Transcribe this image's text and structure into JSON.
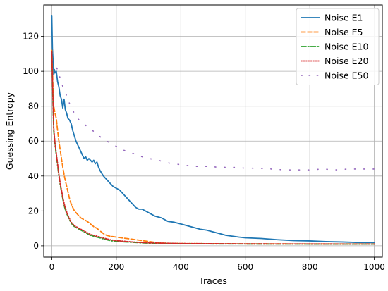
{
  "chart_data": {
    "type": "line",
    "xlabel": "Traces",
    "ylabel": "Guessing Entropy",
    "xlim": [
      -25,
      1025
    ],
    "ylim": [
      -6.5,
      138
    ],
    "x_ticks": [
      0,
      200,
      400,
      600,
      800,
      1000
    ],
    "y_ticks": [
      0,
      20,
      40,
      60,
      80,
      100,
      120
    ],
    "grid": true,
    "legend_position": "top-right",
    "series": [
      {
        "name": "Noise E1",
        "color": "#1f77b4",
        "style": "solid",
        "points": [
          [
            0,
            132
          ],
          [
            2,
            113
          ],
          [
            4,
            106
          ],
          [
            6,
            98
          ],
          [
            8,
            101
          ],
          [
            10,
            99
          ],
          [
            14,
            100
          ],
          [
            18,
            94
          ],
          [
            22,
            91
          ],
          [
            26,
            86
          ],
          [
            30,
            84
          ],
          [
            34,
            79
          ],
          [
            38,
            84
          ],
          [
            42,
            78
          ],
          [
            46,
            76
          ],
          [
            50,
            73
          ],
          [
            55,
            72
          ],
          [
            60,
            70
          ],
          [
            65,
            66
          ],
          [
            70,
            63
          ],
          [
            75,
            60
          ],
          [
            80,
            58
          ],
          [
            85,
            56
          ],
          [
            90,
            54
          ],
          [
            95,
            52
          ],
          [
            100,
            50
          ],
          [
            105,
            51
          ],
          [
            110,
            49
          ],
          [
            115,
            50
          ],
          [
            120,
            49
          ],
          [
            125,
            48
          ],
          [
            130,
            49
          ],
          [
            135,
            47
          ],
          [
            140,
            48
          ],
          [
            145,
            45
          ],
          [
            150,
            43
          ],
          [
            160,
            40
          ],
          [
            170,
            38
          ],
          [
            180,
            36
          ],
          [
            190,
            34
          ],
          [
            200,
            33
          ],
          [
            210,
            32
          ],
          [
            220,
            30
          ],
          [
            230,
            28
          ],
          [
            240,
            26
          ],
          [
            250,
            24
          ],
          [
            260,
            22
          ],
          [
            270,
            21
          ],
          [
            280,
            21
          ],
          [
            290,
            20
          ],
          [
            300,
            19
          ],
          [
            320,
            17
          ],
          [
            340,
            16
          ],
          [
            360,
            14
          ],
          [
            380,
            13.5
          ],
          [
            400,
            12.5
          ],
          [
            420,
            11.5
          ],
          [
            440,
            10.5
          ],
          [
            460,
            9.5
          ],
          [
            480,
            9
          ],
          [
            500,
            8
          ],
          [
            520,
            7
          ],
          [
            540,
            6
          ],
          [
            560,
            5.5
          ],
          [
            580,
            5
          ],
          [
            600,
            4.6
          ],
          [
            650,
            4.2
          ],
          [
            700,
            3.5
          ],
          [
            750,
            3
          ],
          [
            800,
            2.8
          ],
          [
            850,
            2.4
          ],
          [
            900,
            2.2
          ],
          [
            950,
            1.9
          ],
          [
            1000,
            1.9
          ]
        ]
      },
      {
        "name": "Noise E5",
        "color": "#ff7f0e",
        "style": "dashed",
        "points": [
          [
            0,
            112
          ],
          [
            2,
            101
          ],
          [
            4,
            88
          ],
          [
            6,
            80
          ],
          [
            8,
            78
          ],
          [
            10,
            76
          ],
          [
            14,
            73
          ],
          [
            18,
            66
          ],
          [
            22,
            60
          ],
          [
            26,
            55
          ],
          [
            30,
            50
          ],
          [
            35,
            44
          ],
          [
            40,
            39
          ],
          [
            45,
            35
          ],
          [
            50,
            31
          ],
          [
            55,
            27
          ],
          [
            60,
            24
          ],
          [
            65,
            22
          ],
          [
            70,
            20
          ],
          [
            80,
            18
          ],
          [
            90,
            16
          ],
          [
            100,
            15
          ],
          [
            110,
            14
          ],
          [
            120,
            12.5
          ],
          [
            130,
            11
          ],
          [
            140,
            10
          ],
          [
            150,
            8.5
          ],
          [
            160,
            7
          ],
          [
            170,
            6
          ],
          [
            180,
            5.5
          ],
          [
            200,
            5
          ],
          [
            220,
            4.5
          ],
          [
            240,
            4
          ],
          [
            260,
            3.5
          ],
          [
            280,
            3
          ],
          [
            300,
            2.5
          ],
          [
            320,
            2
          ],
          [
            340,
            1.6
          ],
          [
            360,
            1.4
          ],
          [
            400,
            1.3
          ],
          [
            500,
            1.2
          ],
          [
            600,
            1.1
          ],
          [
            700,
            1.1
          ],
          [
            800,
            1.05
          ],
          [
            900,
            1.05
          ],
          [
            1000,
            1.05
          ]
        ]
      },
      {
        "name": "Noise E10",
        "color": "#2ca02c",
        "style": "dashdot",
        "points": [
          [
            0,
            110
          ],
          [
            2,
            95
          ],
          [
            4,
            80
          ],
          [
            6,
            66
          ],
          [
            8,
            62
          ],
          [
            10,
            58
          ],
          [
            14,
            52
          ],
          [
            18,
            46
          ],
          [
            22,
            40
          ],
          [
            26,
            35
          ],
          [
            30,
            31
          ],
          [
            35,
            26
          ],
          [
            40,
            22
          ],
          [
            45,
            19
          ],
          [
            50,
            17
          ],
          [
            55,
            15
          ],
          [
            60,
            13
          ],
          [
            70,
            11
          ],
          [
            80,
            10
          ],
          [
            90,
            9
          ],
          [
            100,
            8
          ],
          [
            110,
            7
          ],
          [
            120,
            6
          ],
          [
            130,
            5.5
          ],
          [
            140,
            5
          ],
          [
            160,
            4
          ],
          [
            180,
            3
          ],
          [
            200,
            2.5
          ],
          [
            250,
            2
          ],
          [
            300,
            1.5
          ],
          [
            400,
            1.2
          ],
          [
            500,
            1.1
          ],
          [
            600,
            1.05
          ],
          [
            800,
            1.0
          ],
          [
            1000,
            1.0
          ]
        ]
      },
      {
        "name": "Noise E20",
        "color": "#d62728",
        "style": "dotted",
        "points": [
          [
            0,
            111
          ],
          [
            2,
            96
          ],
          [
            4,
            82
          ],
          [
            6,
            68
          ],
          [
            8,
            63
          ],
          [
            10,
            59
          ],
          [
            14,
            53
          ],
          [
            18,
            47
          ],
          [
            22,
            41
          ],
          [
            26,
            36
          ],
          [
            30,
            32
          ],
          [
            35,
            27
          ],
          [
            40,
            23
          ],
          [
            45,
            20
          ],
          [
            50,
            17.5
          ],
          [
            55,
            15.5
          ],
          [
            60,
            13.5
          ],
          [
            70,
            11.5
          ],
          [
            80,
            10.5
          ],
          [
            90,
            9.5
          ],
          [
            100,
            8.5
          ],
          [
            110,
            7.5
          ],
          [
            120,
            6.5
          ],
          [
            130,
            6
          ],
          [
            140,
            5.5
          ],
          [
            160,
            4.5
          ],
          [
            180,
            3.5
          ],
          [
            200,
            3
          ],
          [
            250,
            2.2
          ],
          [
            300,
            1.7
          ],
          [
            400,
            1.3
          ],
          [
            500,
            1.2
          ],
          [
            600,
            1.1
          ],
          [
            800,
            1.05
          ],
          [
            1000,
            1.0
          ]
        ]
      },
      {
        "name": "Noise E50",
        "color": "#9467bd",
        "style": "sparse-dotted",
        "points": [
          [
            0,
            112
          ],
          [
            3,
            107
          ],
          [
            10,
            104
          ],
          [
            20,
            100
          ],
          [
            30,
            93
          ],
          [
            40,
            89
          ],
          [
            50,
            84
          ],
          [
            60,
            79
          ],
          [
            70,
            76
          ],
          [
            80,
            73
          ],
          [
            90,
            71
          ],
          [
            100,
            70
          ],
          [
            110,
            68
          ],
          [
            120,
            67
          ],
          [
            140,
            64
          ],
          [
            160,
            61
          ],
          [
            180,
            59
          ],
          [
            200,
            57
          ],
          [
            220,
            55
          ],
          [
            240,
            53.5
          ],
          [
            260,
            52.5
          ],
          [
            280,
            51
          ],
          [
            300,
            50
          ],
          [
            320,
            49.5
          ],
          [
            340,
            48.5
          ],
          [
            360,
            47.5
          ],
          [
            380,
            47
          ],
          [
            400,
            46.5
          ],
          [
            440,
            45.5
          ],
          [
            480,
            45.5
          ],
          [
            520,
            45
          ],
          [
            560,
            45
          ],
          [
            600,
            44.5
          ],
          [
            640,
            44.5
          ],
          [
            680,
            44
          ],
          [
            720,
            43.5
          ],
          [
            760,
            43.5
          ],
          [
            800,
            43.5
          ],
          [
            840,
            44
          ],
          [
            880,
            43.5
          ],
          [
            920,
            44
          ],
          [
            960,
            44
          ],
          [
            1000,
            44
          ]
        ]
      }
    ]
  }
}
